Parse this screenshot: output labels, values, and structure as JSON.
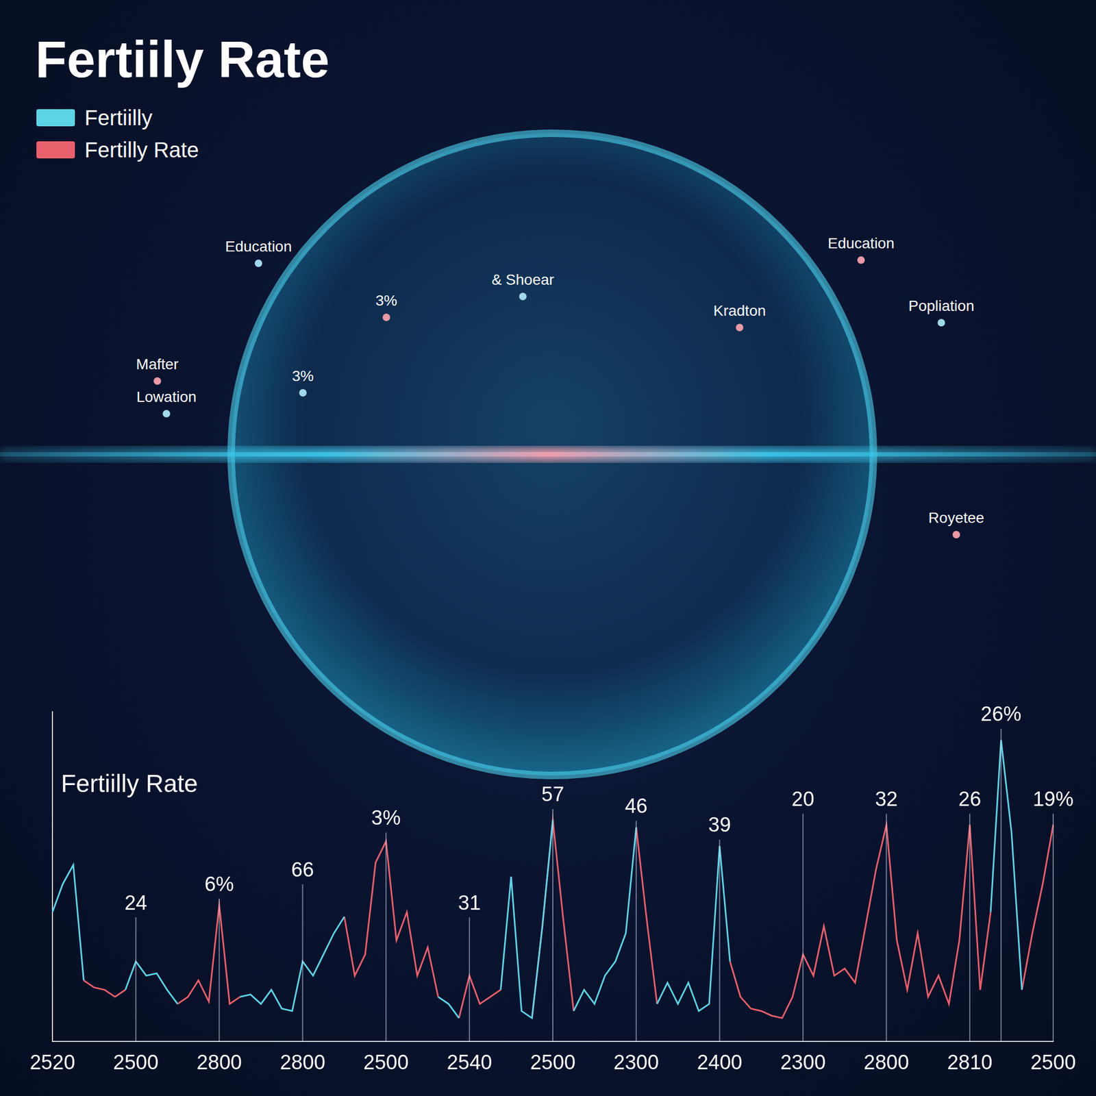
{
  "header": {
    "title": "Fertiily Rate"
  },
  "globe": {
    "labels": [
      "Education",
      "Education",
      "Popliation",
      "Kradton",
      "& Shoear",
      "3%",
      "3%",
      "Mafter",
      "Lowation",
      "Royetee"
    ]
  },
  "chart_data": {
    "type": "line",
    "title": "Fertiilly Rate",
    "legend": "top-left",
    "grid": false,
    "tick_labels": "x",
    "ylim": [
      0,
      140
    ],
    "categories": [
      "2520",
      null,
      null,
      null,
      null,
      null,
      null,
      null,
      "2500",
      null,
      null,
      null,
      null,
      null,
      null,
      null,
      "2800",
      null,
      null,
      null,
      null,
      null,
      null,
      null,
      "2800",
      null,
      null,
      null,
      null,
      null,
      null,
      null,
      "2500",
      null,
      null,
      null,
      null,
      null,
      null,
      null,
      "2540",
      null,
      null,
      null,
      null,
      null,
      null,
      null,
      "2500",
      null,
      null,
      null,
      null,
      null,
      null,
      null,
      "2300",
      null,
      null,
      null,
      null,
      null,
      null,
      null,
      "2400",
      null,
      null,
      null,
      null,
      null,
      null,
      null,
      "2300",
      null,
      null,
      null,
      null,
      null,
      null,
      null,
      "2800",
      null,
      null,
      null,
      null,
      null,
      null,
      null,
      "2810",
      null,
      null,
      null,
      null,
      null,
      null,
      null,
      "2500"
    ],
    "series": [
      {
        "name": "Fertiilly",
        "color": "#5fd3e6",
        "values": [
          55,
          67,
          75,
          26,
          null,
          null,
          null,
          22,
          34,
          28,
          29,
          22,
          16,
          null,
          null,
          null,
          null,
          null,
          19,
          20,
          16,
          22,
          14,
          13,
          34,
          28,
          37,
          46,
          53,
          null,
          null,
          null,
          null,
          null,
          null,
          null,
          null,
          19,
          16,
          10,
          null,
          null,
          null,
          22,
          70,
          13,
          10,
          49,
          94,
          null,
          13,
          22,
          16,
          28,
          34,
          46,
          91,
          null,
          16,
          25,
          16,
          25,
          13,
          16,
          83,
          34,
          null,
          null,
          null,
          null,
          null,
          null,
          null,
          null,
          null,
          null,
          null,
          null,
          null,
          null,
          null,
          null,
          null,
          null,
          null,
          null,
          null,
          null,
          null,
          null,
          55,
          128,
          89,
          22,
          null,
          null,
          null
        ]
      },
      {
        "name": "Fertilly Rate",
        "color": "#e8606c",
        "values": [
          null,
          null,
          null,
          26,
          23,
          22,
          19,
          22,
          null,
          null,
          null,
          null,
          16,
          19,
          26,
          17,
          58,
          16,
          19,
          null,
          null,
          null,
          null,
          null,
          null,
          null,
          null,
          null,
          53,
          28,
          37,
          76,
          85,
          43,
          55,
          28,
          40,
          19,
          null,
          10,
          28,
          16,
          19,
          22,
          null,
          null,
          10,
          49,
          94,
          52,
          13,
          null,
          null,
          null,
          null,
          null,
          91,
          52,
          16,
          null,
          null,
          null,
          null,
          null,
          null,
          34,
          19,
          14,
          13,
          11,
          10,
          19,
          37,
          28,
          49,
          28,
          31,
          25,
          49,
          73,
          92,
          43,
          22,
          46,
          19,
          28,
          16,
          43,
          92,
          22,
          55,
          null,
          null,
          22,
          46,
          67,
          92
        ]
      }
    ],
    "annotations": [
      {
        "x": 8,
        "y": 55,
        "text": "24"
      },
      {
        "x": 16,
        "y": 63,
        "text": "6%"
      },
      {
        "x": 24,
        "y": 69,
        "text": "66"
      },
      {
        "x": 32,
        "y": 91,
        "text": "3%"
      },
      {
        "x": 40,
        "y": 55,
        "text": "31"
      },
      {
        "x": 48,
        "y": 101,
        "text": "57"
      },
      {
        "x": 56,
        "y": 96,
        "text": "46"
      },
      {
        "x": 64,
        "y": 88,
        "text": "39"
      },
      {
        "x": 72,
        "y": 99,
        "text": "20"
      },
      {
        "x": 80,
        "y": 99,
        "text": "32"
      },
      {
        "x": 88,
        "y": 99,
        "text": "26"
      },
      {
        "x": 91,
        "y": 135,
        "text": "26%"
      },
      {
        "x": 96,
        "y": 99,
        "text": "19%"
      }
    ]
  }
}
